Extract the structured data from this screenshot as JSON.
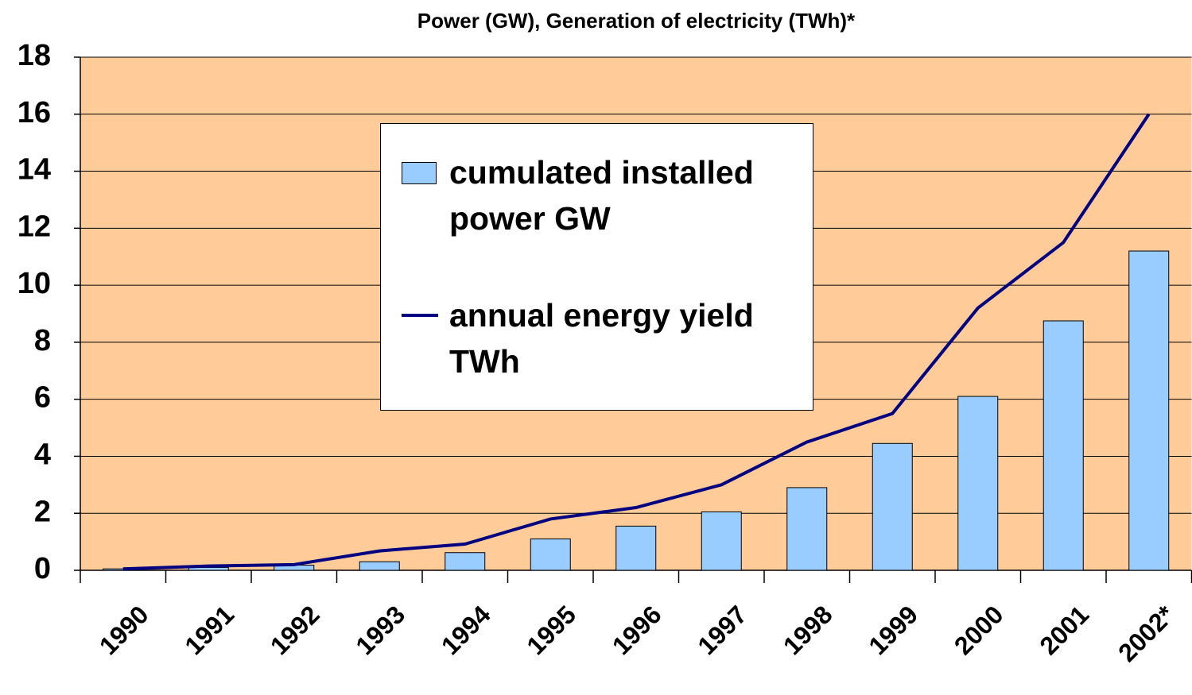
{
  "chart_data": {
    "type": "bar",
    "title": "Power (GW), Generation of electricity (TWh)*",
    "categories": [
      "1990",
      "1991",
      "1992",
      "1993",
      "1994",
      "1995",
      "1996",
      "1997",
      "1998",
      "1999",
      "2000",
      "2001",
      "2002*"
    ],
    "series": [
      {
        "name": "cumulated installed power GW",
        "type": "bar",
        "color": "#99ccff",
        "values": [
          0.05,
          0.1,
          0.18,
          0.3,
          0.62,
          1.1,
          1.55,
          2.05,
          2.9,
          4.45,
          6.1,
          8.75,
          11.2
        ]
      },
      {
        "name": "annual energy yield TWh",
        "type": "line",
        "color": "#000080",
        "values": [
          0.05,
          0.15,
          0.2,
          0.68,
          0.92,
          1.8,
          2.2,
          3.0,
          4.5,
          5.5,
          9.2,
          11.5,
          16
        ]
      }
    ],
    "ylim": [
      0,
      18
    ],
    "yticks": [
      0,
      2,
      4,
      6,
      8,
      10,
      12,
      14,
      16,
      18
    ],
    "grid": true,
    "background": "#ffcc99"
  }
}
